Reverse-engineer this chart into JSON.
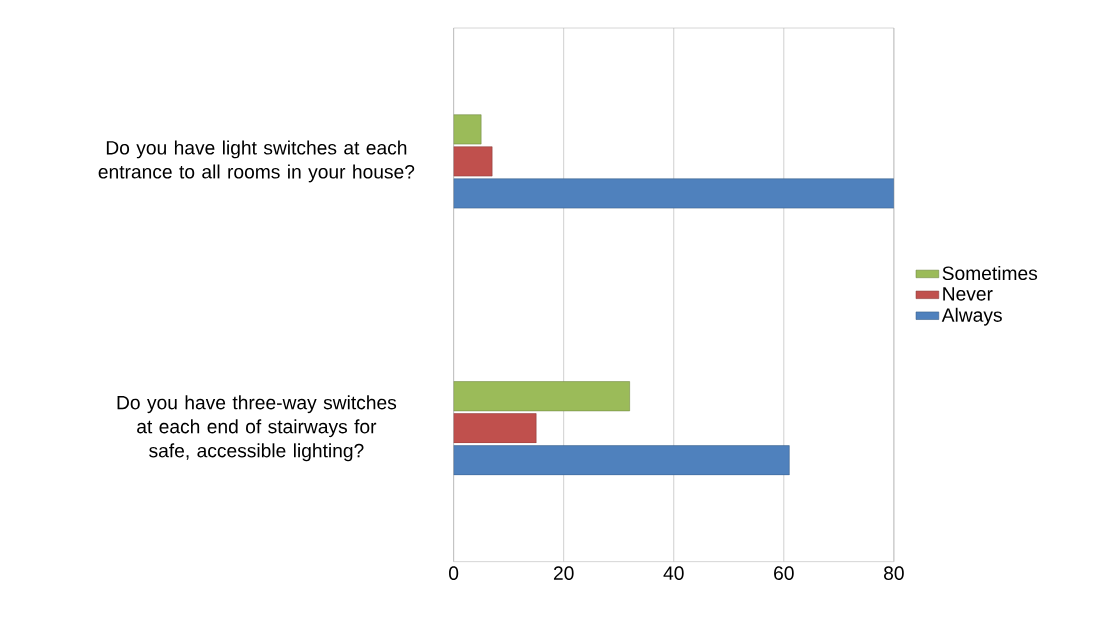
{
  "chart_data": {
    "type": "bar",
    "orientation": "horizontal",
    "categories": [
      "Do you have light switches at each entrance to all rooms in your house?",
      "Do you have three-way switches at each end of stairways for safe, accessible lighting?"
    ],
    "series": [
      {
        "name": "Always",
        "color": "#4f81bd",
        "values": [
          80,
          61
        ]
      },
      {
        "name": "Never",
        "color": "#c0504d",
        "values": [
          7,
          15
        ]
      },
      {
        "name": "Sometimes",
        "color": "#9bbb59",
        "values": [
          5,
          32
        ]
      }
    ],
    "xlim": [
      0,
      80
    ],
    "xticks": [
      0,
      20,
      40,
      60,
      80
    ],
    "grid": "x",
    "legend": "right"
  }
}
